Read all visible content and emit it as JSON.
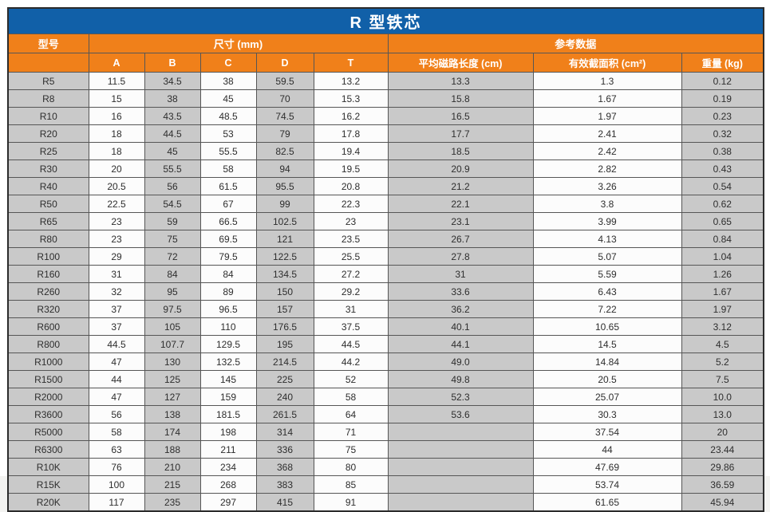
{
  "title": "R 型铁芯",
  "table": {
    "col_model": "型号",
    "group_size": "尺寸 (mm)",
    "group_ref": "参考数据",
    "sub_headers": [
      "A",
      "B",
      "C",
      "D",
      "T"
    ],
    "ref_headers": [
      "平均磁路长度 (cm)",
      "有效截面积 (cm²)",
      "重量 (kg)"
    ],
    "rows": [
      [
        "R5",
        "11.5",
        "34.5",
        "38",
        "59.5",
        "13.2",
        "13.3",
        "1.3",
        "0.12"
      ],
      [
        "R8",
        "15",
        "38",
        "45",
        "70",
        "15.3",
        "15.8",
        "1.67",
        "0.19"
      ],
      [
        "R10",
        "16",
        "43.5",
        "48.5",
        "74.5",
        "16.2",
        "16.5",
        "1.97",
        "0.23"
      ],
      [
        "R20",
        "18",
        "44.5",
        "53",
        "79",
        "17.8",
        "17.7",
        "2.41",
        "0.32"
      ],
      [
        "R25",
        "18",
        "45",
        "55.5",
        "82.5",
        "19.4",
        "18.5",
        "2.42",
        "0.38"
      ],
      [
        "R30",
        "20",
        "55.5",
        "58",
        "94",
        "19.5",
        "20.9",
        "2.82",
        "0.43"
      ],
      [
        "R40",
        "20.5",
        "56",
        "61.5",
        "95.5",
        "20.8",
        "21.2",
        "3.26",
        "0.54"
      ],
      [
        "R50",
        "22.5",
        "54.5",
        "67",
        "99",
        "22.3",
        "22.1",
        "3.8",
        "0.62"
      ],
      [
        "R65",
        "23",
        "59",
        "66.5",
        "102.5",
        "23",
        "23.1",
        "3.99",
        "0.65"
      ],
      [
        "R80",
        "23",
        "75",
        "69.5",
        "121",
        "23.5",
        "26.7",
        "4.13",
        "0.84"
      ],
      [
        "R100",
        "29",
        "72",
        "79.5",
        "122.5",
        "25.5",
        "27.8",
        "5.07",
        "1.04"
      ],
      [
        "R160",
        "31",
        "84",
        "84",
        "134.5",
        "27.2",
        "31",
        "5.59",
        "1.26"
      ],
      [
        "R260",
        "32",
        "95",
        "89",
        "150",
        "29.2",
        "33.6",
        "6.43",
        "1.67"
      ],
      [
        "R320",
        "37",
        "97.5",
        "96.5",
        "157",
        "31",
        "36.2",
        "7.22",
        "1.97"
      ],
      [
        "R600",
        "37",
        "105",
        "110",
        "176.5",
        "37.5",
        "40.1",
        "10.65",
        "3.12"
      ],
      [
        "R800",
        "44.5",
        "107.7",
        "129.5",
        "195",
        "44.5",
        "44.1",
        "14.5",
        "4.5"
      ],
      [
        "R1000",
        "47",
        "130",
        "132.5",
        "214.5",
        "44.2",
        "49.0",
        "14.84",
        "5.2"
      ],
      [
        "R1500",
        "44",
        "125",
        "145",
        "225",
        "52",
        "49.8",
        "20.5",
        "7.5"
      ],
      [
        "R2000",
        "47",
        "127",
        "159",
        "240",
        "58",
        "52.3",
        "25.07",
        "10.0"
      ],
      [
        "R3600",
        "56",
        "138",
        "181.5",
        "261.5",
        "64",
        "53.6",
        "30.3",
        "13.0"
      ],
      [
        "R5000",
        "58",
        "174",
        "198",
        "314",
        "71",
        "",
        "37.54",
        "20"
      ],
      [
        "R6300",
        "63",
        "188",
        "211",
        "336",
        "75",
        "",
        "44",
        "23.44"
      ],
      [
        "R10K",
        "76",
        "210",
        "234",
        "368",
        "80",
        "",
        "47.69",
        "29.86"
      ],
      [
        "R15K",
        "100",
        "215",
        "268",
        "383",
        "85",
        "",
        "53.74",
        "36.59"
      ],
      [
        "R20K",
        "117",
        "235",
        "297",
        "415",
        "91",
        "",
        "61.65",
        "45.94"
      ]
    ]
  },
  "colors": {
    "title_bg": "#1160a8",
    "header_bg": "#f0801a",
    "stripe_gray": "#c9c9c9",
    "border": "#565656"
  }
}
